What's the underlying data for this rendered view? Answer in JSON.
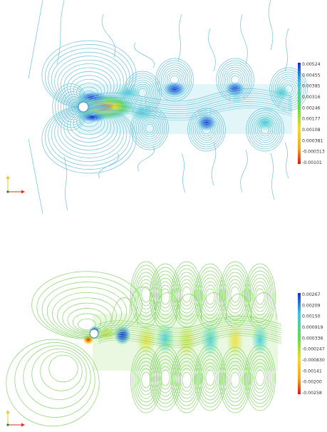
{
  "panels": [
    {
      "colorbar": {
        "labels": [
          "0.00524",
          "0.00455",
          "0.00385",
          "0.00316",
          "0.00246",
          "0.00177",
          "0.00108",
          "0.000381",
          "-0.000313",
          "-0.00101"
        ],
        "colors_top_to_bottom": [
          "#1a2bd0",
          "#3f7fe0",
          "#38c6e6",
          "#37e0b0",
          "#5fdd43",
          "#c4e62b",
          "#f4dd1f",
          "#f7a51a",
          "#ee5a17",
          "#d81a16"
        ]
      }
    },
    {
      "colorbar": {
        "labels": [
          "0.00267",
          "0.00209",
          "0.00150",
          "0.000919",
          "0.000336",
          "-0.000247",
          "-0.000830",
          "-0.00141",
          "-0.00200",
          "-0.00258"
        ],
        "colors_top_to_bottom": [
          "#1a2bd0",
          "#3f7fe0",
          "#38c6e6",
          "#37e0b0",
          "#5fdd43",
          "#c4e62b",
          "#f4dd1f",
          "#f7a51a",
          "#ee5a17",
          "#d81a16"
        ]
      }
    }
  ],
  "colors": {
    "contour_top": "#6cc2d8",
    "contour_bottom": "#86d46a",
    "axis_x": "#e0301e",
    "axis_y": "#f0c419"
  }
}
